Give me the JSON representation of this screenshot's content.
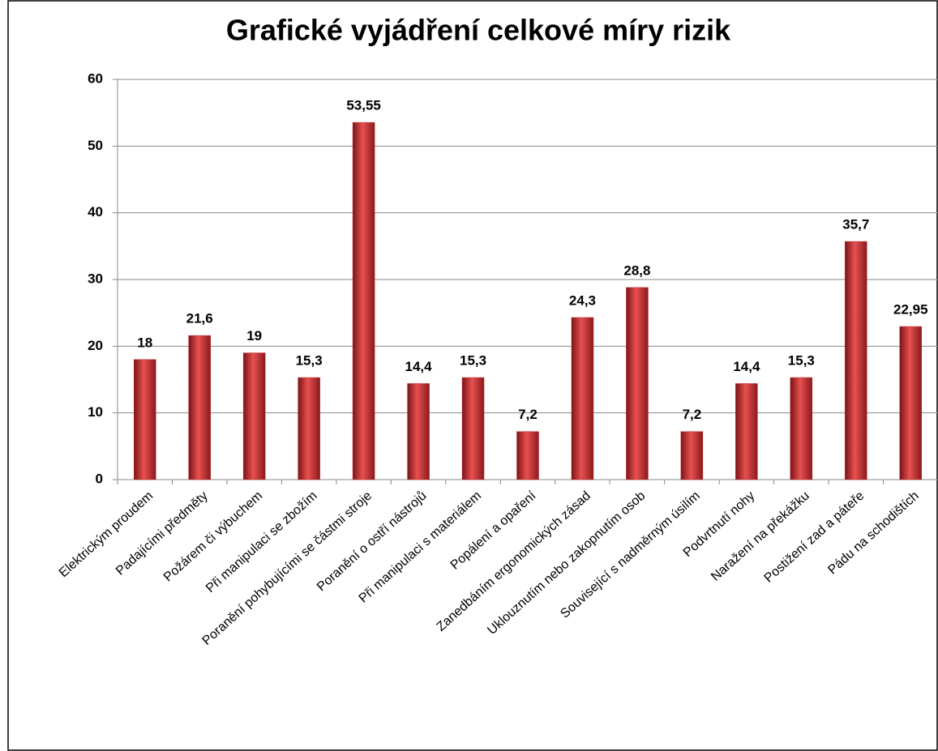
{
  "chart_data": {
    "type": "bar",
    "title": "Grafické vyjádření celkové míry rizik",
    "categories": [
      "Elektrickým proudem",
      "Padajícími předměty",
      "Požárem či výbuchem",
      "Při manipulaci se zbožím",
      "Poranění pohybujícími se částmi stroje",
      "Poranění o ostří nástrojů",
      "Při manipulaci s materiálem",
      "Popálení a opaření",
      "Zanedbáním ergonomických zásad",
      "Uklouznutím nebo zakopnutím osob",
      "Související s nadměrným úsilím",
      "Podvrtnutí nohy",
      "Naražení na překážku",
      "Postižení zad a páteře",
      "Pádu na schodištích"
    ],
    "values": [
      18,
      21.6,
      19,
      15.3,
      53.55,
      14.4,
      15.3,
      7.2,
      24.3,
      28.8,
      7.2,
      14.4,
      15.3,
      35.7,
      22.95
    ],
    "value_labels": [
      "18",
      "21,6",
      "19",
      "15,3",
      "53,55",
      "14,4",
      "15,3",
      "7,2",
      "24,3",
      "28,8",
      "7,2",
      "14,4",
      "15,3",
      "35,7",
      "22,95"
    ],
    "color": "#c0282a",
    "ylim": [
      0,
      60
    ],
    "yticks": [
      0,
      10,
      20,
      30,
      40,
      50,
      60
    ],
    "grid": true
  }
}
